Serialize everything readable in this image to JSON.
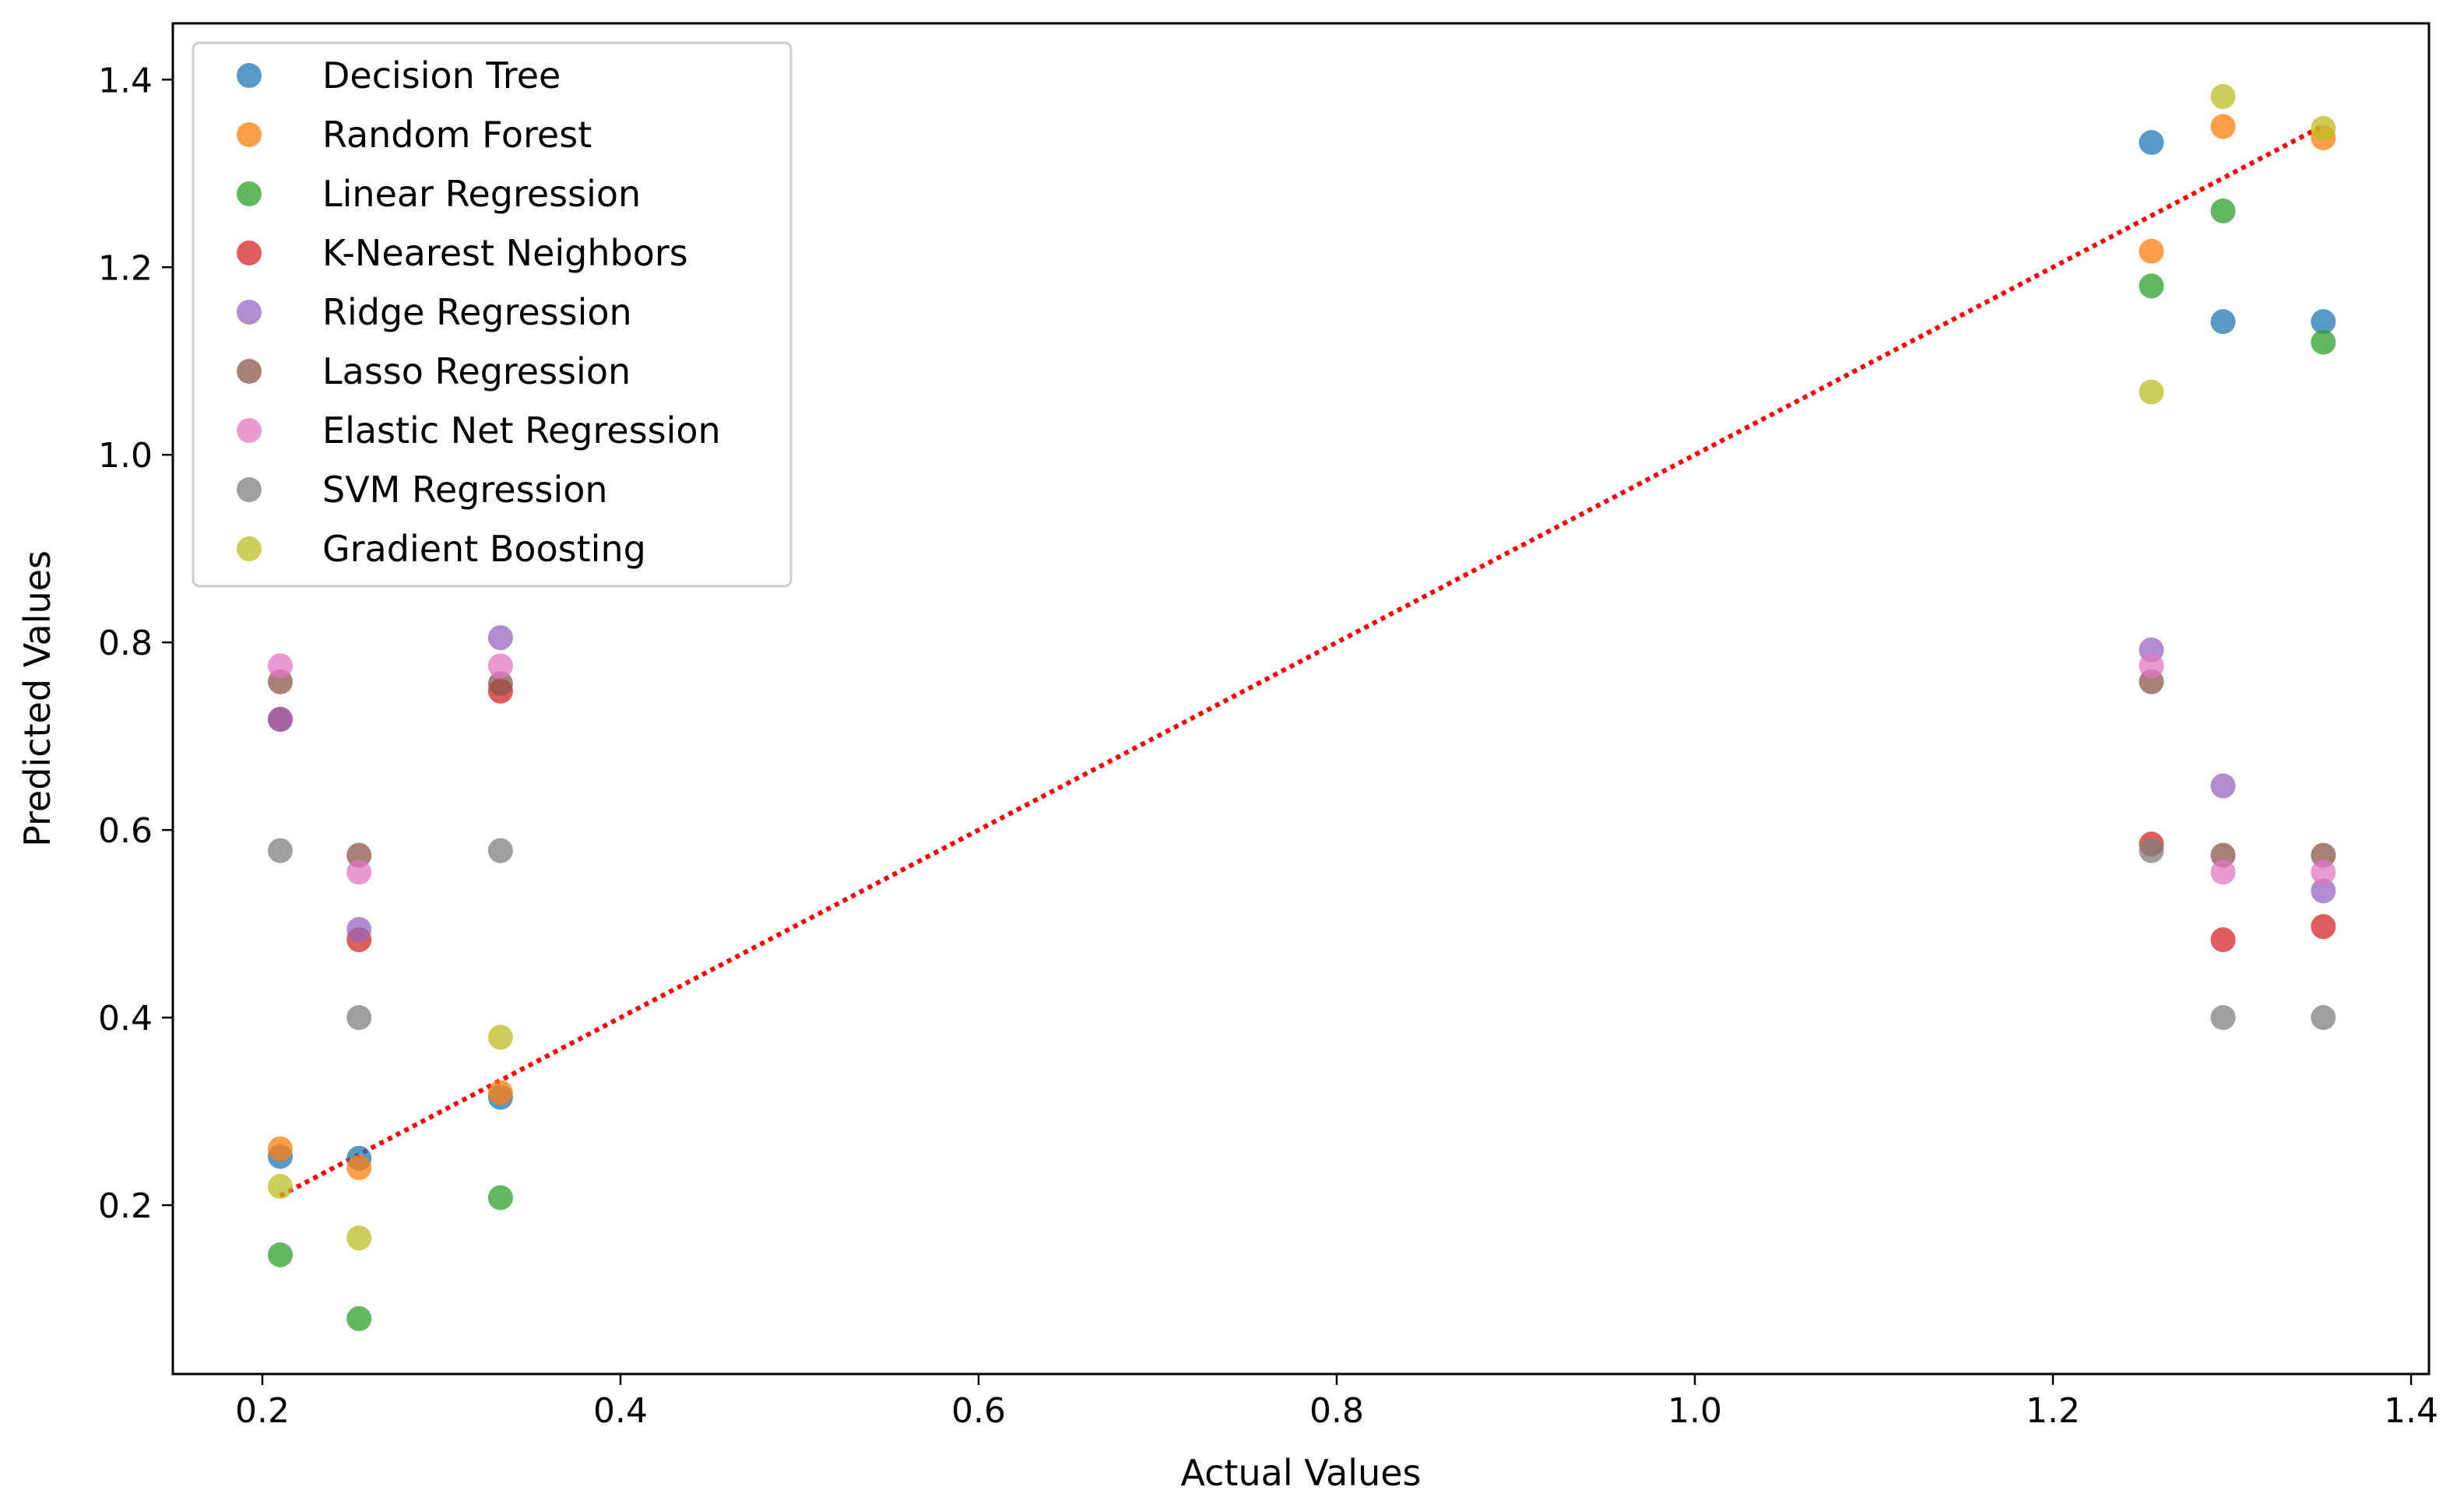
{
  "chart_data": {
    "type": "scatter",
    "title": "",
    "xlabel": "Actual Values",
    "ylabel": "Predicted Values",
    "xlim": [
      0.15,
      1.41
    ],
    "ylim": [
      0.02,
      1.46
    ],
    "xticks": [
      0.2,
      0.4,
      0.6,
      0.8,
      1.0,
      1.2,
      1.4
    ],
    "yticks": [
      0.2,
      0.4,
      0.6,
      0.8,
      1.0,
      1.2,
      1.4
    ],
    "grid": false,
    "legend_position": "top-left",
    "x": [
      0.21,
      0.254,
      0.333,
      1.255,
      1.295,
      1.351
    ],
    "series": [
      {
        "name": "Decision Tree",
        "color": "#1f77b4",
        "values": [
          0.252,
          0.25,
          0.315,
          1.333,
          1.142,
          1.142
        ]
      },
      {
        "name": "Random Forest",
        "color": "#ff7f0e",
        "values": [
          0.26,
          0.24,
          0.32,
          1.217,
          1.35,
          1.338
        ]
      },
      {
        "name": "Linear Regression",
        "color": "#2ca02c",
        "values": [
          0.147,
          0.079,
          0.208,
          1.18,
          1.26,
          1.12
        ]
      },
      {
        "name": "K-Nearest Neighbors",
        "color": "#d62728",
        "values": [
          0.718,
          0.483,
          0.748,
          0.585,
          0.483,
          0.497
        ]
      },
      {
        "name": "Ridge Regression",
        "color": "#9467bd",
        "values": [
          0.718,
          0.494,
          0.805,
          0.792,
          0.647,
          0.535
        ]
      },
      {
        "name": "Lasso Regression",
        "color": "#8c564b",
        "values": [
          0.758,
          0.573,
          0.756,
          0.758,
          0.573,
          0.573
        ]
      },
      {
        "name": "Elastic Net Regression",
        "color": "#e377c2",
        "values": [
          0.775,
          0.555,
          0.775,
          0.775,
          0.555,
          0.555
        ]
      },
      {
        "name": "SVM Regression",
        "color": "#7f7f7f",
        "values": [
          0.578,
          0.4,
          0.578,
          0.578,
          0.4,
          0.4
        ]
      },
      {
        "name": "Gradient Boosting",
        "color": "#bcbd22",
        "values": [
          0.22,
          0.165,
          0.379,
          1.067,
          1.382,
          1.348
        ]
      }
    ],
    "reference_line": {
      "style": "dotted",
      "color": "#ff0000",
      "x": [
        0.21,
        1.351
      ],
      "y": [
        0.21,
        1.351
      ]
    }
  }
}
